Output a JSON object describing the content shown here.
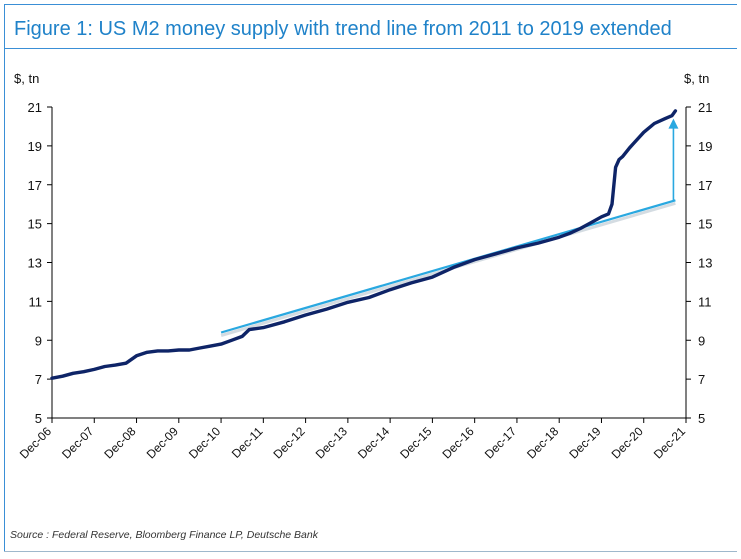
{
  "figure": {
    "title": "Figure 1: US M2 money supply with trend line from 2011 to 2019 extended",
    "source": "Source : Federal Reserve, Bloomberg Finance LP, Deutsche Bank"
  },
  "colors": {
    "m2_line": "#0e2467",
    "trend_line": "#29a8e0",
    "frame": "#3a8fd6",
    "title": "#1f82c9"
  },
  "chart_data": {
    "type": "line",
    "title": "Figure 1: US M2 money supply with trend line from 2011 to 2019 extended",
    "ylabel_left": "$, tn",
    "ylabel_right": "$, tn",
    "ylim": [
      5,
      21
    ],
    "yticks": [
      5,
      7,
      9,
      11,
      13,
      15,
      17,
      19,
      21
    ],
    "xlim": [
      "2006-12",
      "2021-12"
    ],
    "xtick_labels": [
      "Dec-06",
      "Dec-07",
      "Dec-08",
      "Dec-09",
      "Dec-10",
      "Dec-11",
      "Dec-12",
      "Dec-13",
      "Dec-14",
      "Dec-15",
      "Dec-16",
      "Dec-17",
      "Dec-18",
      "Dec-19",
      "Dec-20",
      "Dec-21"
    ],
    "grid": false,
    "legend": "none",
    "series": [
      {
        "role": "m2",
        "x": [
          "2006-12",
          "2007-03",
          "2007-06",
          "2007-09",
          "2007-12",
          "2008-03",
          "2008-06",
          "2008-09",
          "2008-12",
          "2009-03",
          "2009-06",
          "2009-09",
          "2009-12",
          "2010-03",
          "2010-06",
          "2010-09",
          "2010-12",
          "2011-03",
          "2011-06",
          "2011-08",
          "2011-12",
          "2012-06",
          "2012-12",
          "2013-06",
          "2013-12",
          "2014-06",
          "2014-12",
          "2015-06",
          "2015-12",
          "2016-06",
          "2016-12",
          "2017-06",
          "2017-12",
          "2018-06",
          "2018-12",
          "2019-03",
          "2019-06",
          "2019-09",
          "2019-12",
          "2020-02",
          "2020-03",
          "2020-04",
          "2020-05",
          "2020-06",
          "2020-08",
          "2020-10",
          "2020-12",
          "2021-03",
          "2021-06",
          "2021-08",
          "2021-09"
        ],
        "values": [
          7.05,
          7.15,
          7.3,
          7.38,
          7.5,
          7.65,
          7.72,
          7.82,
          8.2,
          8.38,
          8.45,
          8.45,
          8.5,
          8.5,
          8.6,
          8.7,
          8.8,
          9.0,
          9.2,
          9.55,
          9.65,
          9.95,
          10.3,
          10.6,
          10.95,
          11.2,
          11.6,
          11.95,
          12.25,
          12.75,
          13.15,
          13.45,
          13.75,
          14.0,
          14.3,
          14.5,
          14.75,
          15.05,
          15.35,
          15.5,
          16.0,
          17.9,
          18.3,
          18.45,
          18.9,
          19.3,
          19.7,
          20.15,
          20.4,
          20.55,
          20.8
        ]
      },
      {
        "role": "trend",
        "x": [
          "2010-12",
          "2021-09"
        ],
        "values": [
          9.4,
          16.2
        ]
      }
    ],
    "annotations": [
      {
        "type": "arrow",
        "x": "2021-09",
        "from": 16.2,
        "to": 20.4
      }
    ]
  }
}
